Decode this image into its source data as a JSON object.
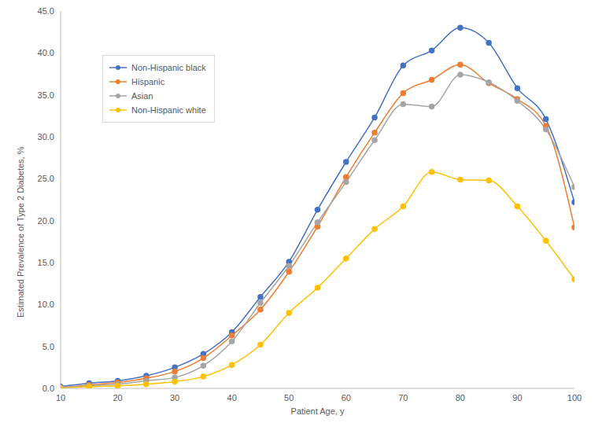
{
  "chart_data": {
    "type": "line",
    "x_label": "Patient Age, y",
    "y_label": "Estimated Prevalence of Type 2 Diabetes, %",
    "x": [
      10,
      15,
      20,
      25,
      30,
      35,
      40,
      45,
      50,
      55,
      60,
      65,
      70,
      75,
      80,
      85,
      90,
      95,
      100
    ],
    "series": [
      {
        "name": "Non-Hispanic black",
        "color": "#4472c4",
        "values": [
          0.2,
          0.6,
          0.9,
          1.5,
          2.5,
          4.1,
          6.7,
          10.9,
          15.1,
          21.3,
          27.0,
          32.3,
          38.5,
          40.3,
          43.0,
          41.2,
          35.8,
          32.1,
          22.2
        ]
      },
      {
        "name": "Hispanic",
        "color": "#ed7d31",
        "values": [
          0.1,
          0.4,
          0.7,
          1.2,
          2.0,
          3.6,
          6.3,
          9.4,
          13.9,
          19.3,
          25.2,
          30.5,
          35.2,
          36.8,
          38.6,
          36.4,
          34.5,
          31.3,
          19.2
        ]
      },
      {
        "name": "Asian",
        "color": "#a5a5a5",
        "values": [
          0.1,
          0.3,
          0.5,
          0.9,
          1.3,
          2.7,
          5.6,
          10.2,
          14.6,
          19.8,
          24.6,
          29.6,
          33.9,
          33.6,
          37.4,
          36.5,
          34.3,
          30.9,
          24.0
        ]
      },
      {
        "name": "Non-Hispanic white",
        "color": "#ffc000",
        "values": [
          0.0,
          0.2,
          0.3,
          0.5,
          0.8,
          1.4,
          2.8,
          5.2,
          9.0,
          12.0,
          15.5,
          19.0,
          21.7,
          25.8,
          24.9,
          24.8,
          21.7,
          17.6,
          13.0
        ]
      }
    ],
    "xlim": [
      10,
      100
    ],
    "xticks": [
      10,
      20,
      30,
      40,
      50,
      60,
      70,
      80,
      90,
      100
    ],
    "ylim": [
      0,
      45
    ],
    "yticks": [
      {
        "value": 0,
        "label": "0.0"
      },
      {
        "value": 5,
        "label": "5.0"
      },
      {
        "value": 10,
        "label": "10.0"
      },
      {
        "value": 15,
        "label": "15.0"
      },
      {
        "value": 20,
        "label": "20.0"
      },
      {
        "value": 25,
        "label": "25.0"
      },
      {
        "value": 30,
        "label": "30.0"
      },
      {
        "value": 35,
        "label": "35.0"
      },
      {
        "value": 40,
        "label": "40.0"
      },
      {
        "value": 45,
        "label": "45.0"
      }
    ],
    "grid": false,
    "legend": "upper left",
    "marker": "circle"
  }
}
